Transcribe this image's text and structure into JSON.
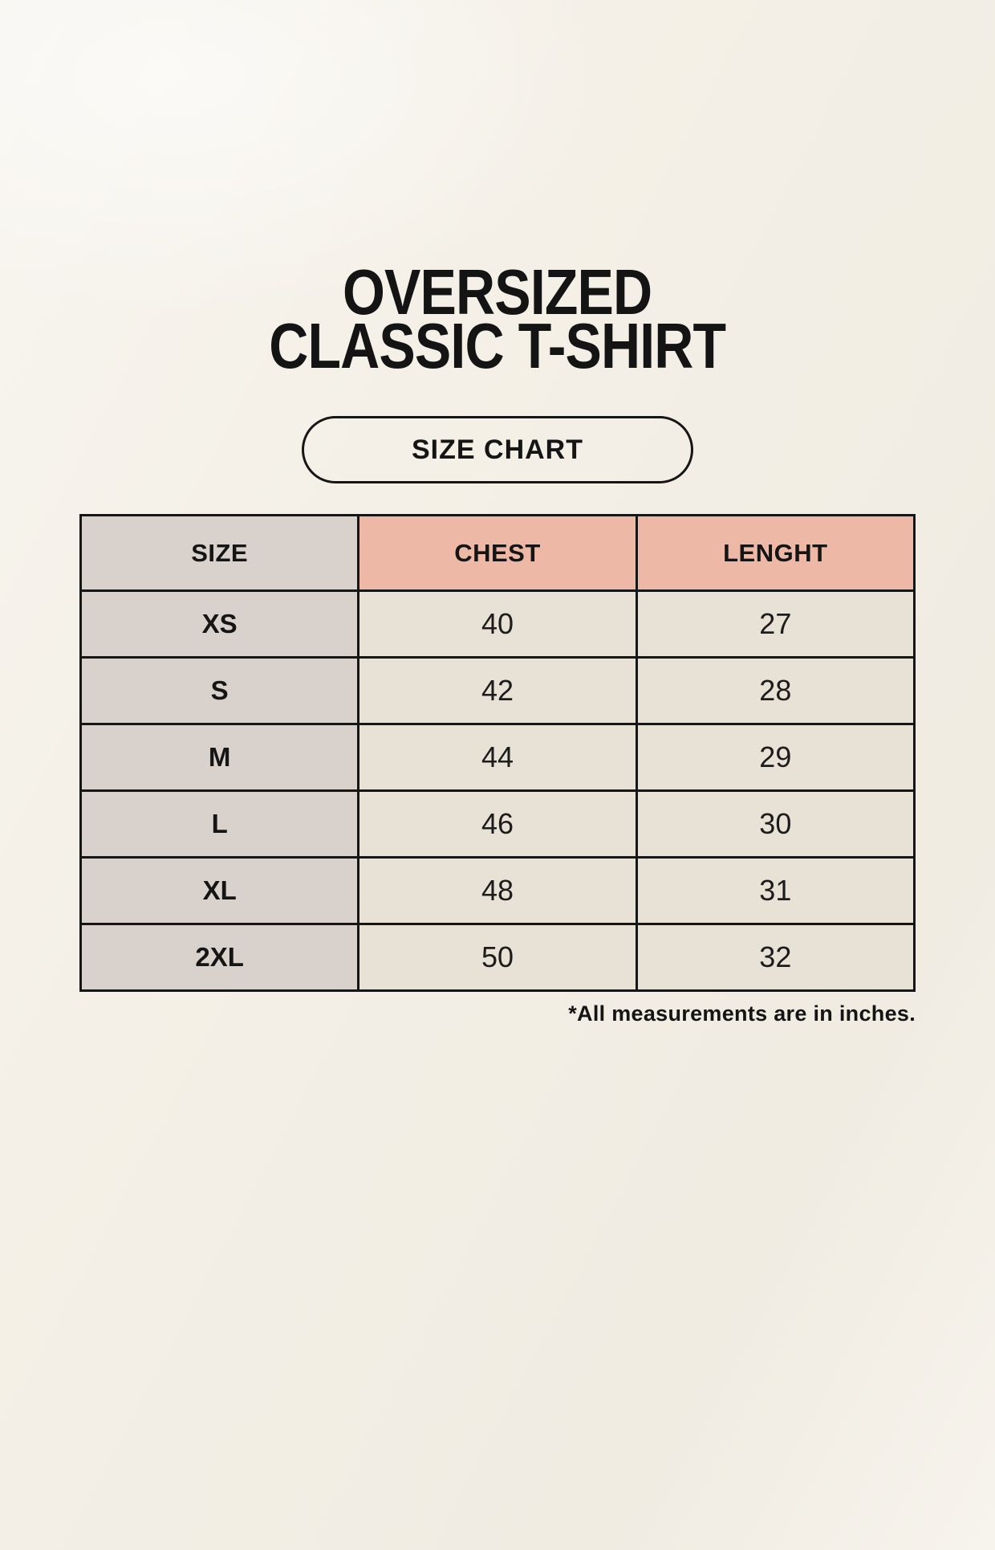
{
  "page": {
    "title_line1": "OVERSIZED",
    "title_line2": "CLASSIC T-SHIRT",
    "badge_label": "SIZE CHART",
    "footnote": "*All measurements are in inches."
  },
  "colors": {
    "background": "#f4f0e7",
    "size_column": "#d9d2cc",
    "header_accent": "#edb9a6",
    "data_cell": "#e8e1d5",
    "ink": "#161616"
  },
  "chart_data": {
    "type": "table",
    "title": "OVERSIZED CLASSIC T-SHIRT — SIZE CHART",
    "units": "inches",
    "columns": [
      "SIZE",
      "CHEST",
      "LENGHT"
    ],
    "rows": [
      [
        "XS",
        "40",
        "27"
      ],
      [
        "S",
        "42",
        "28"
      ],
      [
        "M",
        "44",
        "29"
      ],
      [
        "L",
        "46",
        "30"
      ],
      [
        "XL",
        "48",
        "31"
      ],
      [
        "2XL",
        "50",
        "32"
      ]
    ]
  }
}
